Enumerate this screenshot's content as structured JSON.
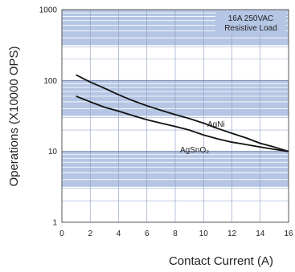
{
  "chart_data": {
    "type": "line",
    "title": "",
    "xlabel": "Contact Current (A)",
    "ylabel": "Operations (X10000 OPS)",
    "yscale": "log",
    "xlim": [
      0,
      16
    ],
    "ylim": [
      1,
      1000
    ],
    "x_ticks": [
      "0",
      "2",
      "4",
      "6",
      "8",
      "10",
      "12",
      "14",
      "16"
    ],
    "y_ticks": [
      "1",
      "10",
      "100",
      "1000"
    ],
    "grid": true,
    "annotation": {
      "line1": "16A 250VAC",
      "line2": "Resistive Load"
    },
    "series": [
      {
        "name": "AgNi",
        "x": [
          1,
          2,
          3,
          4,
          5,
          6,
          7,
          8,
          9,
          10,
          11,
          12,
          13,
          14,
          15,
          16
        ],
        "y": [
          120,
          95,
          78,
          63,
          52,
          44,
          38,
          33,
          29,
          25,
          21,
          18,
          15.5,
          13,
          11.5,
          10
        ]
      },
      {
        "name": "AgSnO₂",
        "x": [
          1,
          2,
          3,
          4,
          5,
          6,
          7,
          8,
          9,
          10,
          11,
          12,
          13,
          14,
          15,
          16
        ],
        "y": [
          60,
          50,
          42,
          37,
          32,
          28,
          25,
          22.5,
          20,
          17,
          15,
          13.5,
          12.5,
          11.5,
          10.7,
          10
        ]
      }
    ]
  },
  "colors": {
    "band": "#b5c6e4",
    "grid": "#ffffff",
    "line": "#111111",
    "frame": "#555555"
  }
}
